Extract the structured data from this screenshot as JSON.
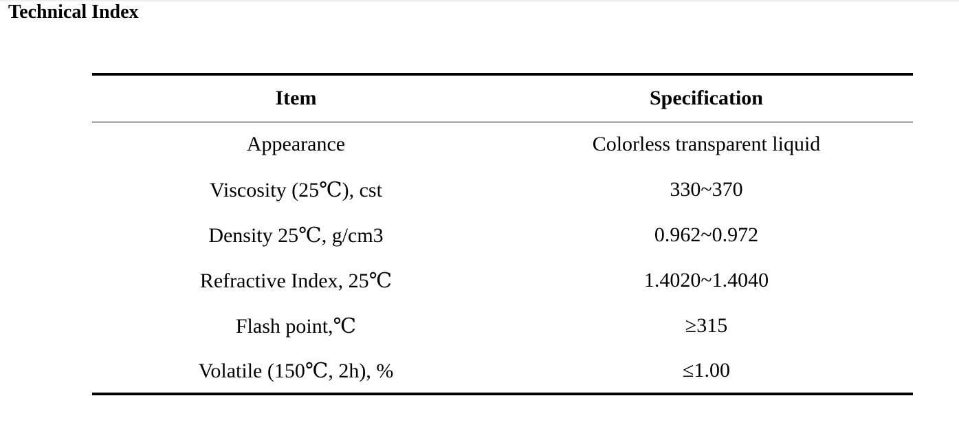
{
  "section": {
    "title": "Technical Index"
  },
  "table": {
    "headers": [
      "Item",
      "Specification"
    ],
    "rows": [
      {
        "item": "Appearance",
        "spec": "Colorless transparent liquid"
      },
      {
        "item": "Viscosity (25℃), cst",
        "spec": "330~370"
      },
      {
        "item": "Density 25℃, g/cm3",
        "spec": "0.962~0.972"
      },
      {
        "item": "Refractive Index, 25℃",
        "spec": "1.4020~1.4040"
      },
      {
        "item": "Flash point,℃",
        "spec": "≥315"
      },
      {
        "item": "Volatile (150℃, 2h), %",
        "spec": "≤1.00"
      }
    ]
  }
}
